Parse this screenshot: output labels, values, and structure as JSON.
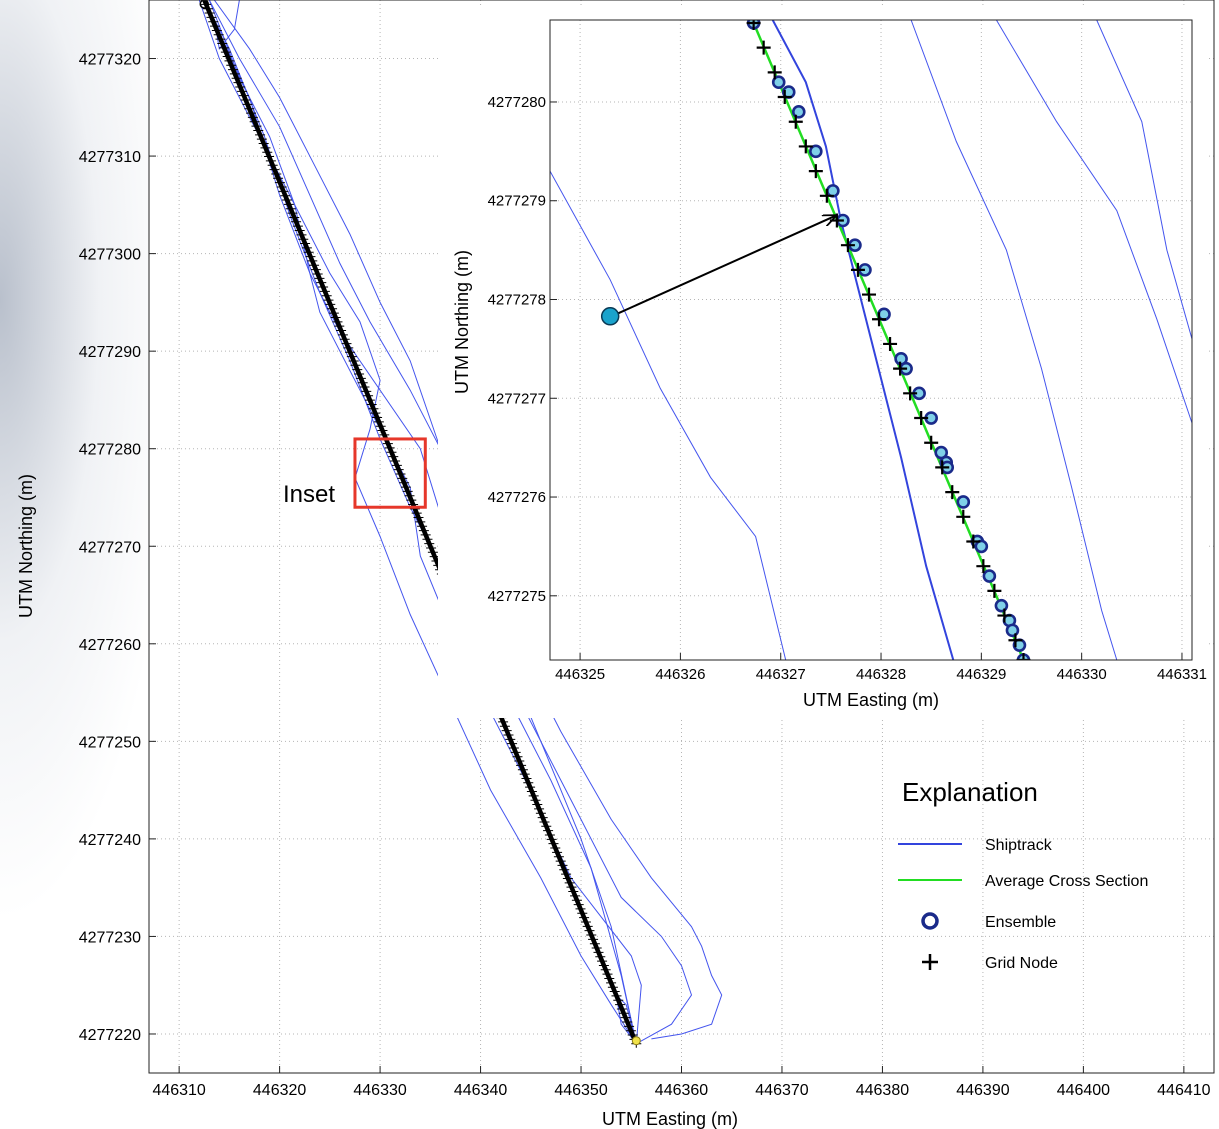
{
  "chart_data": [
    {
      "type": "line",
      "id": "main",
      "xlabel": "UTM Easting (m)",
      "ylabel": "UTM Northing (m)",
      "xlim": [
        446307,
        446413
      ],
      "ylim": [
        4277216,
        4277326
      ],
      "xticks": [
        446310,
        446320,
        446330,
        446340,
        446350,
        446360,
        446370,
        446380,
        446390,
        446400,
        446410
      ],
      "yticks": [
        4277220,
        4277230,
        4277240,
        4277250,
        4277260,
        4277270,
        4277280,
        4277290,
        4277300,
        4277310,
        4277320
      ],
      "grid": true,
      "series": [
        {
          "kind": "shiptrack",
          "color": "#4455ee",
          "points": [
            [
              446312.5,
              4277326
            ],
            [
              446315,
              4277321
            ],
            [
              446318.5,
              4277312
            ],
            [
              446321,
              4277304
            ],
            [
              446324,
              4277296
            ],
            [
              446327,
              4277289
            ],
            [
              446330,
              4277281
            ],
            [
              446333,
              4277274
            ],
            [
              446337,
              4277266
            ],
            [
              446342,
              4277256
            ],
            [
              446347,
              4277246
            ],
            [
              446351,
              4277237
            ],
            [
              446354,
              4277226
            ],
            [
              446355.5,
              4277219
            ]
          ]
        },
        {
          "kind": "shiptrack",
          "color": "#4455ee",
          "points": [
            [
              446312.5,
              4277326
            ],
            [
              446317,
              4277316
            ],
            [
              446320,
              4277306
            ],
            [
              446323,
              4277298
            ],
            [
              446326,
              4277292
            ],
            [
              446330,
              4277286
            ],
            [
              446334,
              4277280
            ],
            [
              446337,
              4277270
            ],
            [
              446342,
              4277260
            ],
            [
              446346,
              4277250
            ],
            [
              446350,
              4277240
            ],
            [
              446353,
              4277231
            ],
            [
              446355.5,
              4277219
            ]
          ]
        },
        {
          "kind": "shiptrack",
          "color": "#4455ee",
          "points": [
            [
              446313,
              4277326
            ],
            [
              446316,
              4277318
            ],
            [
              446319,
              4277312
            ],
            [
              446321.5,
              4277305
            ],
            [
              446323,
              4277298
            ],
            [
              446324,
              4277294
            ],
            [
              446328,
              4277286
            ],
            [
              446331,
              4277280
            ],
            [
              446333,
              4277276
            ],
            [
              446334,
              4277269
            ],
            [
              446338,
              4277259
            ],
            [
              446344,
              4277247
            ],
            [
              446349,
              4277236
            ],
            [
              446355,
              4277228
            ],
            [
              446356,
              4277225
            ],
            [
              446355.5,
              4277219
            ]
          ]
        },
        {
          "kind": "shiptrack",
          "color": "#4455ee",
          "points": [
            [
              446312,
              4277326
            ],
            [
              446314,
              4277320
            ],
            [
              446318,
              4277312
            ],
            [
              446321,
              4277306
            ],
            [
              446325,
              4277298
            ],
            [
              446328,
              4277293
            ],
            [
              446330,
              4277287
            ],
            [
              446329,
              4277282
            ],
            [
              446327.5,
              4277277
            ],
            [
              446330,
              4277271
            ],
            [
              446333,
              4277263
            ],
            [
              446337,
              4277254
            ],
            [
              446341,
              4277245
            ],
            [
              446346,
              4277236
            ],
            [
              446350,
              4277228
            ],
            [
              446353,
              4277223
            ],
            [
              446355.5,
              4277219
            ]
          ]
        },
        {
          "kind": "shiptrack",
          "color": "#4455ee",
          "points": [
            [
              446313,
              4277326
            ],
            [
              446316,
              4277320
            ],
            [
              446320,
              4277313
            ],
            [
              446323,
              4277306
            ],
            [
              446326,
              4277299
            ],
            [
              446329,
              4277293
            ],
            [
              446333,
              4277286
            ],
            [
              446336,
              4277280
            ],
            [
              446338,
              4277272
            ],
            [
              446340,
              4277264
            ],
            [
              446344,
              4277254
            ],
            [
              446348,
              4277246
            ],
            [
              446354,
              4277234
            ],
            [
              446358,
              4277230
            ],
            [
              446360,
              4277227
            ],
            [
              446361,
              4277224
            ],
            [
              446359,
              4277221
            ],
            [
              446355.5,
              4277219
            ]
          ]
        },
        {
          "kind": "shiptrack",
          "color": "#4455ee",
          "points": [
            [
              446313.5,
              4277326
            ],
            [
              446317,
              4277321
            ],
            [
              446320,
              4277316
            ],
            [
              446323.5,
              4277309
            ],
            [
              446327,
              4277302
            ],
            [
              446330,
              4277295
            ],
            [
              446333,
              4277289
            ],
            [
              446335,
              4277283
            ],
            [
              446337,
              4277277
            ],
            [
              446339,
              4277271
            ],
            [
              446343,
              4277261
            ],
            [
              446348,
              4277251
            ],
            [
              446353,
              4277242
            ],
            [
              446357,
              4277236
            ],
            [
              446361,
              4277231
            ],
            [
              446362,
              4277229
            ],
            [
              446363,
              4277226
            ],
            [
              446364,
              4277224
            ],
            [
              446363,
              4277221
            ],
            [
              446360,
              4277220
            ],
            [
              446357,
              4277219.5
            ]
          ]
        },
        {
          "kind": "shiptrack",
          "color": "#4455ee",
          "points": [
            [
              446312.5,
              4277326
            ],
            [
              446313.5,
              4277324
            ],
            [
              446314,
              4277321
            ],
            [
              446315.5,
              4277323
            ],
            [
              446316,
              4277326
            ]
          ]
        },
        {
          "kind": "shiptrack",
          "color": "#4455ee",
          "points": [
            [
              446355.5,
              4277219
            ],
            [
              446354,
              4277221
            ],
            [
              446353.5,
              4277224
            ],
            [
              446354.5,
              4277223
            ],
            [
              446355.5,
              4277219
            ]
          ]
        },
        {
          "kind": "average_cross_section",
          "color": "#000000",
          "points": [
            [
              446312.5,
              4277326
            ],
            [
              446355.5,
              4277219
            ]
          ]
        }
      ],
      "annotation": {
        "text": "Inset",
        "color": "#e6372a",
        "box": {
          "x": [
            446327.5,
            446334.5
          ],
          "y": [
            4277274,
            4277281
          ]
        }
      },
      "markers": {
        "start": [
          446312.5,
          4277326
        ],
        "end": [
          446355.5,
          4277219
        ]
      }
    },
    {
      "type": "scatter",
      "id": "inset",
      "xlabel": "UTM Easting (m)",
      "ylabel": "UTM Northing (m)",
      "xlim": [
        446324.7,
        446331.1
      ],
      "ylim": [
        4277274.35,
        4277280.83
      ],
      "xticks": [
        446325,
        446326,
        446327,
        446328,
        446329,
        446330,
        446331
      ],
      "yticks": [
        4277275,
        4277276,
        4277277,
        4277278,
        4277279,
        4277280
      ],
      "grid": true,
      "shiptracks": [
        {
          "color": "#3344dd",
          "width": 2,
          "points": [
            [
              446326.92,
              4277280.83
            ],
            [
              446327.25,
              4277280.2
            ],
            [
              446327.45,
              4277279.55
            ],
            [
              446327.6,
              4277278.8
            ],
            [
              446327.9,
              4277277.6
            ],
            [
              446328.2,
              4277276.4
            ],
            [
              446328.45,
              4277275.3
            ],
            [
              446328.72,
              4277274.35
            ]
          ]
        },
        {
          "color": "#4455ee",
          "width": 1,
          "points": [
            [
              446324.7,
              4277279.3
            ],
            [
              446325.3,
              4277278.2
            ],
            [
              446325.8,
              4277277.1
            ],
            [
              446326.3,
              4277276.2
            ],
            [
              446326.75,
              4277275.6
            ],
            [
              446327.05,
              4277274.35
            ]
          ]
        },
        {
          "color": "#4455ee",
          "width": 1,
          "points": [
            [
              446328.3,
              4277280.83
            ],
            [
              446328.75,
              4277279.6
            ],
            [
              446329.25,
              4277278.5
            ],
            [
              446329.6,
              4277277.3
            ],
            [
              446329.9,
              4277276.1
            ],
            [
              446330.2,
              4277274.85
            ],
            [
              446330.35,
              4277274.35
            ]
          ]
        },
        {
          "color": "#4455ee",
          "width": 1,
          "points": [
            [
              446329.15,
              4277280.83
            ],
            [
              446329.75,
              4277279.8
            ],
            [
              446330.35,
              4277278.9
            ],
            [
              446330.75,
              4277277.8
            ],
            [
              446331.1,
              4277276.75
            ]
          ]
        },
        {
          "color": "#4455ee",
          "width": 1,
          "points": [
            [
              446330.15,
              4277280.83
            ],
            [
              446330.6,
              4277279.8
            ],
            [
              446330.85,
              4277278.5
            ],
            [
              446331.1,
              4277277.6
            ]
          ]
        }
      ],
      "average_cross_section": {
        "color": "#22dd22",
        "points": [
          [
            446326.73,
            4277280.8
          ],
          [
            446329.42,
            4277274.35
          ]
        ]
      },
      "ensembles": [
        [
          446326.73,
          4277280.8
        ],
        [
          446326.98,
          4277280.2
        ],
        [
          446327.08,
          4277280.1
        ],
        [
          446327.18,
          4277279.9
        ],
        [
          446327.35,
          4277279.5
        ],
        [
          446327.52,
          4277279.1
        ],
        [
          446327.62,
          4277278.8
        ],
        [
          446327.74,
          4277278.55
        ],
        [
          446327.84,
          4277278.3
        ],
        [
          446328.03,
          4277277.85
        ],
        [
          446328.2,
          4277277.4
        ],
        [
          446328.25,
          4277277.3
        ],
        [
          446328.38,
          4277277.05
        ],
        [
          446328.5,
          4277276.8
        ],
        [
          446328.6,
          4277276.45
        ],
        [
          446328.65,
          4277276.35
        ],
        [
          446328.66,
          4277276.3
        ],
        [
          446328.82,
          4277275.95
        ],
        [
          446328.96,
          4277275.55
        ],
        [
          446329.0,
          4277275.5
        ],
        [
          446329.08,
          4277275.2
        ],
        [
          446329.2,
          4277274.9
        ],
        [
          446329.28,
          4277274.75
        ],
        [
          446329.31,
          4277274.65
        ],
        [
          446329.38,
          4277274.5
        ],
        [
          446329.42,
          4277274.35
        ]
      ],
      "grid_nodes": [
        [
          446326.73,
          4277280.8
        ],
        [
          446326.83,
          4277280.55
        ],
        [
          446326.94,
          4277280.3
        ],
        [
          446327.04,
          4277280.05
        ],
        [
          446327.15,
          4277279.8
        ],
        [
          446327.25,
          4277279.55
        ],
        [
          446327.35,
          4277279.3
        ],
        [
          446327.46,
          4277279.05
        ],
        [
          446327.56,
          4277278.8
        ],
        [
          446327.67,
          4277278.55
        ],
        [
          446327.77,
          4277278.3
        ],
        [
          446327.88,
          4277278.05
        ],
        [
          446327.98,
          4277277.8
        ],
        [
          446328.09,
          4277277.55
        ],
        [
          446328.19,
          4277277.3
        ],
        [
          446328.29,
          4277277.05
        ],
        [
          446328.4,
          4277276.8
        ],
        [
          446328.5,
          4277276.55
        ],
        [
          446328.61,
          4277276.3
        ],
        [
          446328.71,
          4277276.05
        ],
        [
          446328.82,
          4277275.8
        ],
        [
          446328.92,
          4277275.55
        ],
        [
          446329.02,
          4277275.3
        ],
        [
          446329.13,
          4277275.05
        ],
        [
          446329.23,
          4277274.8
        ],
        [
          446329.34,
          4277274.55
        ],
        [
          446329.42,
          4277274.35
        ]
      ],
      "callout": {
        "from": [
          446325.3,
          4277277.83
        ],
        "to": [
          446327.55,
          4277278.85
        ],
        "dot_color": "#1aa3cc"
      }
    }
  ],
  "legend": {
    "title": "Explanation",
    "items": [
      {
        "label": "Shiptrack",
        "symbol": "line",
        "color": "#3344dd"
      },
      {
        "label": "Average Cross Section",
        "symbol": "line",
        "color": "#22dd22"
      },
      {
        "label": "Ensemble",
        "symbol": "circle",
        "color": "#1a2a8a"
      },
      {
        "label": "Grid Node",
        "symbol": "plus",
        "color": "#000000"
      }
    ]
  }
}
